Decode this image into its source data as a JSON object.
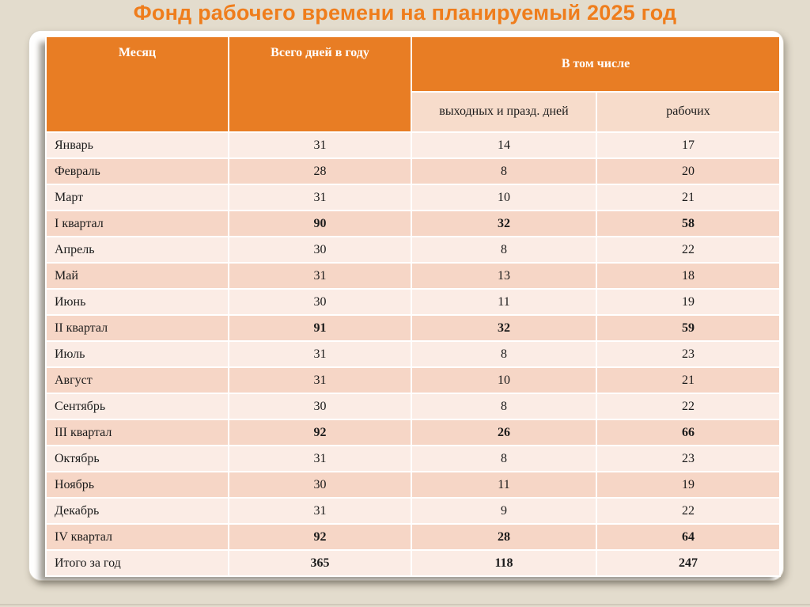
{
  "slide": {
    "title": "Фонд рабочего времени на планируемый 2025 год"
  },
  "colors": {
    "background": "#E3DCCD",
    "card": "#FFFFFF",
    "header_orange": "#E87D24",
    "title_orange": "#EF7D1C",
    "band_light": "#FBECE5",
    "band_dark": "#F6D6C6",
    "subheader_pink": "#F7DCCB",
    "text": "#1A1A1A",
    "header_text": "#FFFFFF"
  },
  "table": {
    "columns": [
      "Месяц",
      "Всего дней в году",
      "В том числе"
    ],
    "subcolumns": [
      "выходных и празд. дней",
      "рабочих"
    ],
    "rows": [
      {
        "label": "Январь",
        "total": "31",
        "weekend": "14",
        "working": "17",
        "bold": false
      },
      {
        "label": "Февраль",
        "total": "28",
        "weekend": "8",
        "working": "20",
        "bold": false
      },
      {
        "label": "Март",
        "total": "31",
        "weekend": "10",
        "working": "21",
        "bold": false
      },
      {
        "label": "I квартал",
        "total": "90",
        "weekend": "32",
        "working": "58",
        "bold": true
      },
      {
        "label": "Апрель",
        "total": "30",
        "weekend": "8",
        "working": "22",
        "bold": false
      },
      {
        "label": "Май",
        "total": "31",
        "weekend": "13",
        "working": "18",
        "bold": false
      },
      {
        "label": "Июнь",
        "total": "30",
        "weekend": "11",
        "working": "19",
        "bold": false
      },
      {
        "label": "II квартал",
        "total": "91",
        "weekend": "32",
        "working": "59",
        "bold": true
      },
      {
        "label": "Июль",
        "total": "31",
        "weekend": "8",
        "working": "23",
        "bold": false
      },
      {
        "label": "Август",
        "total": "31",
        "weekend": "10",
        "working": "21",
        "bold": false
      },
      {
        "label": "Сентябрь",
        "total": "30",
        "weekend": "8",
        "working": "22",
        "bold": false
      },
      {
        "label": "III квартал",
        "total": "92",
        "weekend": "26",
        "working": "66",
        "bold": true
      },
      {
        "label": "Октябрь",
        "total": "31",
        "weekend": "8",
        "working": "23",
        "bold": false
      },
      {
        "label": "Ноябрь",
        "total": "30",
        "weekend": "11",
        "working": "19",
        "bold": false
      },
      {
        "label": "Декабрь",
        "total": "31",
        "weekend": "9",
        "working": "22",
        "bold": false
      },
      {
        "label": "IV квартал",
        "total": "92",
        "weekend": "28",
        "working": "64",
        "bold": true
      },
      {
        "label": "Итого за год",
        "total": "365",
        "weekend": "118",
        "working": "247",
        "bold": true
      }
    ]
  }
}
